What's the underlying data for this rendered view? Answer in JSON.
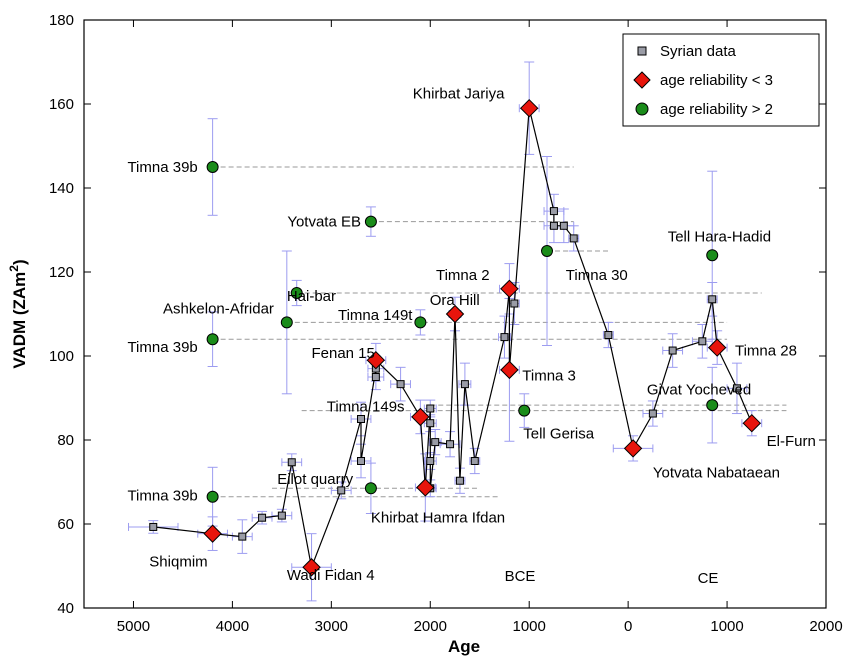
{
  "chart_data": {
    "type": "scatter",
    "xlabel": "Age",
    "ylabel": "VADM (ZAm²)",
    "x_reversed": true,
    "x_axis_note": "years; values left of 0 are BCE (plotted as negative), right of 0 are CE",
    "xlim": [
      -5500,
      2000
    ],
    "ylim": [
      40,
      180
    ],
    "x_ticks": [
      -5000,
      -4000,
      -3000,
      -2000,
      -1000,
      0,
      1000,
      2000
    ],
    "x_tick_labels": [
      "5000",
      "4000",
      "3000",
      "2000",
      "1000",
      "0",
      "1000",
      "2000"
    ],
    "y_ticks": [
      40,
      60,
      80,
      100,
      120,
      140,
      160,
      180
    ],
    "y_tick_labels": [
      "40",
      "60",
      "80",
      "100",
      "120",
      "140",
      "160",
      "180"
    ],
    "era_labels": [
      "BCE",
      "CE"
    ],
    "legend": {
      "position": "top-right",
      "entries": [
        {
          "name": "Syrian data",
          "marker": "square",
          "color": "#9a9ca6"
        },
        {
          "name": "age reliability < 3",
          "marker": "diamond",
          "color": "#e8150c"
        },
        {
          "name": "age reliability > 2",
          "marker": "circle",
          "color": "#1a8c1a"
        }
      ]
    },
    "colors": {
      "syrian": "#9a9ca6",
      "diamond": "#e8150c",
      "circle": "#1a8c1a",
      "errorbar": "#9c9cf0",
      "dashed": "#9a9a9a",
      "line": "#000000"
    },
    "syrian_series": [
      {
        "x": -4800,
        "y": 59.3,
        "xerr": 250,
        "yerr": 1.5
      },
      {
        "x": -3900,
        "y": 57.0,
        "xerr": 100,
        "yerr": 4.0
      },
      {
        "x": -3700,
        "y": 61.5,
        "xerr": 100,
        "yerr": 1.5
      },
      {
        "x": -3500,
        "y": 62.0,
        "xerr": 100,
        "yerr": 1.5
      },
      {
        "x": -3400,
        "y": 74.7,
        "xerr": 100,
        "yerr": 2.0
      },
      {
        "x": -2900,
        "y": 68.0,
        "xerr": 100,
        "yerr": 2.0
      },
      {
        "x": -2700,
        "y": 85.0,
        "xerr": 100,
        "yerr": 4.0
      },
      {
        "x": -2700,
        "y": 75.0,
        "xerr": 100,
        "yerr": 4.0
      },
      {
        "x": -2550,
        "y": 95.0,
        "xerr": 80,
        "yerr": 3.0
      },
      {
        "x": -2550,
        "y": 97.0,
        "xerr": 80,
        "yerr": 3.0
      },
      {
        "x": -2300,
        "y": 93.3,
        "xerr": 100,
        "yerr": 4.0
      },
      {
        "x": -2000,
        "y": 68.5,
        "xerr": 60,
        "yerr": 2.0
      },
      {
        "x": -2000,
        "y": 75.0,
        "xerr": 60,
        "yerr": 2.0
      },
      {
        "x": -2000,
        "y": 84.0,
        "xerr": 60,
        "yerr": 2.0
      },
      {
        "x": -2000,
        "y": 87.5,
        "xerr": 60,
        "yerr": 2.0
      },
      {
        "x": -1950,
        "y": 79.5,
        "xerr": 60,
        "yerr": 3.0
      },
      {
        "x": -1800,
        "y": 79.0,
        "xerr": 100,
        "yerr": 3.0
      },
      {
        "x": -1700,
        "y": 70.3,
        "xerr": 50,
        "yerr": 3.0
      },
      {
        "x": -1650,
        "y": 93.3,
        "xerr": 60,
        "yerr": 5.0
      },
      {
        "x": -1550,
        "y": 75.0,
        "xerr": 50,
        "yerr": 3.0
      },
      {
        "x": -1250,
        "y": 104.5,
        "xerr": 60,
        "yerr": 5.0
      },
      {
        "x": -1150,
        "y": 112.5,
        "xerr": 50,
        "yerr": 5.0
      },
      {
        "x": -750,
        "y": 134.5,
        "xerr": 100,
        "yerr": 4.0
      },
      {
        "x": -750,
        "y": 131.0,
        "xerr": 100,
        "yerr": 4.0
      },
      {
        "x": -650,
        "y": 131.0,
        "xerr": 100,
        "yerr": 4.0
      },
      {
        "x": -550,
        "y": 128.0,
        "xerr": 50,
        "yerr": 3.0
      },
      {
        "x": -200,
        "y": 105.0,
        "xerr": 50,
        "yerr": 3.0
      },
      {
        "x": 250,
        "y": 86.3,
        "xerr": 100,
        "yerr": 3.0
      },
      {
        "x": 450,
        "y": 101.3,
        "xerr": 100,
        "yerr": 4.0
      },
      {
        "x": 750,
        "y": 103.5,
        "xerr": 100,
        "yerr": 4.0
      },
      {
        "x": 850,
        "y": 113.5,
        "xerr": 50,
        "yerr": 4.0
      },
      {
        "x": 1100,
        "y": 92.3,
        "xerr": 100,
        "yerr": 6.0
      }
    ],
    "diamond_series": [
      {
        "label": "",
        "x": -4200,
        "y": 57.7,
        "xerr": 150,
        "yerr": 4.0
      },
      {
        "label": "Wadi Fidan 4",
        "x": -3200,
        "y": 49.7,
        "xerr": 200,
        "yerr": 8.0
      },
      {
        "label": "Fenan 15",
        "x": -2550,
        "y": 99.0,
        "xerr": 100,
        "yerr": 4.0
      },
      {
        "label": "",
        "x": -2100,
        "y": 85.5,
        "xerr": 100,
        "yerr": 4.0
      },
      {
        "label": "Khirbat Hamra Ifdan",
        "x": -2050,
        "y": 68.7,
        "xerr": 100,
        "yerr": 8.0
      },
      {
        "label": "Ora Hill",
        "x": -1750,
        "y": 110.0,
        "xerr": 60,
        "yerr": 4.0
      },
      {
        "label": "Timna 2",
        "x": -1200,
        "y": 116.0,
        "xerr": 100,
        "yerr": 6.0
      },
      {
        "label": "Timna 3",
        "x": -1200,
        "y": 96.7,
        "xerr": 100,
        "yerr": 17.0
      },
      {
        "label": "Khirbat Jariya",
        "x": -1000,
        "y": 159.0,
        "xerr": 100,
        "yerr": 11.0
      },
      {
        "label": "Yotvata Nabataean",
        "x": 50,
        "y": 78.0,
        "xerr": 200,
        "yerr": 3.0
      },
      {
        "label": "Tell Hara-Hadid / Timna 28",
        "x": 900,
        "y": 102.0,
        "xerr": 100,
        "yerr": 4.0
      },
      {
        "label": "El-Furn",
        "x": 1250,
        "y": 84.0,
        "xerr": 100,
        "yerr": 3.0
      }
    ],
    "circle_series": [
      {
        "label": "Timna 39b",
        "x": -4200,
        "y": 145.0,
        "xerr": 0,
        "yerr": 11.5
      },
      {
        "label": "Timna 39b",
        "x": -4200,
        "y": 104.0,
        "xerr": 0,
        "yerr": 6.5
      },
      {
        "label": "Timna 39b",
        "x": -4200,
        "y": 66.5,
        "xerr": 0,
        "yerr": 7.0
      },
      {
        "label": "Ashkelon-Afridar",
        "x": -3450,
        "y": 108.0,
        "xerr": 0,
        "yerr": 17.0
      },
      {
        "label": "Hai-bar",
        "x": -3350,
        "y": 115.0,
        "xerr": 0,
        "yerr": 3.0
      },
      {
        "label": "Yotvata EB",
        "x": -2600,
        "y": 132.0,
        "xerr": 0,
        "yerr": 3.5
      },
      {
        "label": "Eilot quarry",
        "x": -2600,
        "y": 68.5,
        "xerr": 0,
        "yerr": 6.0
      },
      {
        "label": "Timna 149t",
        "x": -2100,
        "y": 108.0,
        "xerr": 0,
        "yerr": 3.0
      },
      {
        "label": "Timna 30",
        "x": -820,
        "y": 125.0,
        "xerr": 0,
        "yerr": 22.5
      },
      {
        "label": "Tell Gerisa",
        "x": -1050,
        "y": 87.0,
        "xerr": 0,
        "yerr": 4.0
      },
      {
        "label": "Tell Hara-Hadid",
        "x": 850,
        "y": 124.0,
        "xerr": 0,
        "yerr": 20.0
      },
      {
        "label": "",
        "x": 850,
        "y": 88.3,
        "xerr": 0,
        "yerr": 9.0
      }
    ],
    "dashed_refs": [
      {
        "y": 145.0,
        "x1": -4200,
        "x2": -550
      },
      {
        "y": 132.0,
        "x1": -2600,
        "x2": -550
      },
      {
        "y": 125.0,
        "x1": -820,
        "x2": -200
      },
      {
        "y": 115.0,
        "x1": -3350,
        "x2": 1350
      },
      {
        "y": 108.0,
        "x1": -3450,
        "x2": 1000
      },
      {
        "y": 104.0,
        "x1": -4200,
        "x2": 1000
      },
      {
        "y": 88.3,
        "x1": -2000,
        "x2": 1600
      },
      {
        "y": 87.0,
        "x1": -3300,
        "x2": 1600
      },
      {
        "y": 68.5,
        "x1": -3600,
        "x2": -1500
      },
      {
        "y": 66.5,
        "x1": -4200,
        "x2": -1300
      }
    ],
    "connecting_path": [
      [
        -4800,
        59.3
      ],
      [
        -4200,
        57.7
      ],
      [
        -3900,
        57.0
      ],
      [
        -3700,
        61.5
      ],
      [
        -3500,
        62.0
      ],
      [
        -3400,
        74.7
      ],
      [
        -3200,
        49.7
      ],
      [
        -2900,
        68.0
      ],
      [
        -2700,
        85.0
      ],
      [
        -2700,
        75.0
      ],
      [
        -2550,
        97.0
      ],
      [
        -2550,
        95.0
      ],
      [
        -2550,
        99.0
      ],
      [
        -2300,
        93.3
      ],
      [
        -2100,
        85.5
      ],
      [
        -2050,
        68.7
      ],
      [
        -2000,
        87.5
      ],
      [
        -2000,
        84.0
      ],
      [
        -2000,
        75.0
      ],
      [
        -2000,
        68.5
      ],
      [
        -1950,
        79.5
      ],
      [
        -1800,
        79.0
      ],
      [
        -1750,
        110.0
      ],
      [
        -1700,
        70.3
      ],
      [
        -1650,
        93.3
      ],
      [
        -1550,
        75.0
      ],
      [
        -1250,
        104.5
      ],
      [
        -1200,
        116.0
      ],
      [
        -1200,
        96.7
      ],
      [
        -1150,
        112.5
      ],
      [
        -1000,
        159.0
      ],
      [
        -750,
        134.5
      ],
      [
        -750,
        131.0
      ],
      [
        -650,
        131.0
      ],
      [
        -550,
        128.0
      ],
      [
        -200,
        105.0
      ],
      [
        50,
        78.0
      ],
      [
        250,
        86.3
      ],
      [
        450,
        101.3
      ],
      [
        750,
        103.5
      ],
      [
        850,
        113.5
      ],
      [
        900,
        102.0
      ],
      [
        1100,
        92.3
      ],
      [
        1250,
        84.0
      ]
    ],
    "text_labels": [
      {
        "text": "Khirbat Jariya",
        "x": -1250,
        "y": 162.5,
        "anchor": "end"
      },
      {
        "text": "Timna 39b",
        "x": -4350,
        "y": 145.0,
        "anchor": "end"
      },
      {
        "text": "Yotvata EB",
        "x": -2700,
        "y": 132.0,
        "anchor": "end"
      },
      {
        "text": "Tell Hara-Hadid",
        "x": 400,
        "y": 128.5,
        "anchor": "start"
      },
      {
        "text": "Timna 30",
        "x": -630,
        "y": 119.3,
        "anchor": "start"
      },
      {
        "text": "Hai-bar",
        "x": -3450,
        "y": 114.3,
        "anchor": "start"
      },
      {
        "text": "Timna 2",
        "x": -1400,
        "y": 119.3,
        "anchor": "end"
      },
      {
        "text": "Ashkelon-Afridar",
        "x": -3580,
        "y": 111.3,
        "anchor": "end"
      },
      {
        "text": "Timna 149t",
        "x": -2180,
        "y": 109.8,
        "anchor": "end"
      },
      {
        "text": "Ora Hill",
        "x": -1500,
        "y": 113.3,
        "anchor": "end"
      },
      {
        "text": "Timna 39b",
        "x": -4350,
        "y": 102.2,
        "anchor": "end"
      },
      {
        "text": "Fenan 15",
        "x": -2560,
        "y": 100.7,
        "anchor": "end"
      },
      {
        "text": "Timna 28",
        "x": 1080,
        "y": 101.3,
        "anchor": "start"
      },
      {
        "text": "Timna 3",
        "x": -1070,
        "y": 95.4,
        "anchor": "start"
      },
      {
        "text": "Givat Yocheved",
        "x": 190,
        "y": 92.0,
        "anchor": "start"
      },
      {
        "text": "Timna 149s",
        "x": -2260,
        "y": 88.0,
        "anchor": "end"
      },
      {
        "text": "Tell Gerisa",
        "x": -1060,
        "y": 81.6,
        "anchor": "start"
      },
      {
        "text": "El-Furn",
        "x": 1400,
        "y": 79.8,
        "anchor": "start"
      },
      {
        "text": "Yotvata Nabataean",
        "x": 250,
        "y": 72.3,
        "anchor": "start"
      },
      {
        "text": "Eilot quarry",
        "x": -2780,
        "y": 70.7,
        "anchor": "end"
      },
      {
        "text": "Timna 39b",
        "x": -4350,
        "y": 66.8,
        "anchor": "end"
      },
      {
        "text": "Khirbat Hamra Ifdan",
        "x": -2600,
        "y": 61.6,
        "anchor": "start"
      },
      {
        "text": "Shiqmim",
        "x": -4250,
        "y": 51.1,
        "anchor": "end"
      },
      {
        "text": "Wadi Fidan 4",
        "x": -3450,
        "y": 47.9,
        "anchor": "start"
      }
    ]
  }
}
